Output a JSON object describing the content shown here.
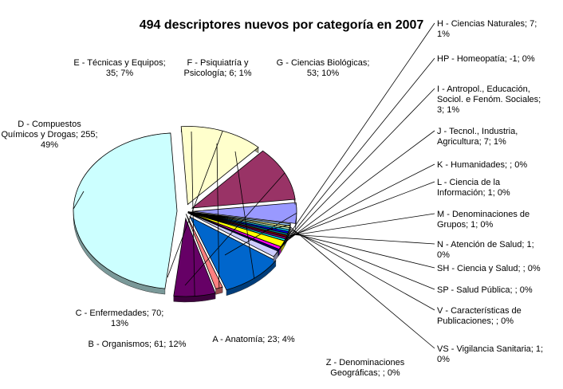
{
  "chart_data": {
    "type": "pie",
    "title": "494 descriptores nuevos por categoría en 2007",
    "series": [
      {
        "key": "D",
        "value": 255,
        "percent": 49,
        "color": "#ccffff",
        "label": [
          "D - Compuestos",
          "Químicos y Drogas; 255;",
          "49%"
        ]
      },
      {
        "key": "E",
        "value": 35,
        "percent": 7,
        "color": "#660066",
        "label": [
          "E - Técnicas y Equipos;",
          "35; 7%"
        ]
      },
      {
        "key": "F",
        "value": 6,
        "percent": 1,
        "color": "#ff8080",
        "label": [
          "F - Psiquiatría y",
          "Psicología; 6; 1%"
        ]
      },
      {
        "key": "G",
        "value": 53,
        "percent": 10,
        "color": "#0066cc",
        "label": [
          "G - Ciencias Biológicas;",
          "53; 10%"
        ]
      },
      {
        "key": "H",
        "value": 7,
        "percent": 1,
        "color": "#ccccff",
        "label": [
          "H - Ciencias Naturales; 7;",
          "1%"
        ]
      },
      {
        "key": "HP",
        "value": -1,
        "percent": 0,
        "color": "#000080",
        "label": [
          "HP - Homeopatía; -1; 0%"
        ]
      },
      {
        "key": "I",
        "value": 3,
        "percent": 1,
        "color": "#ff00ff",
        "label": [
          "I - Antropol., Educación,",
          "Sociol. e Fenóm. Sociales;",
          "3; 1%"
        ]
      },
      {
        "key": "J",
        "value": 7,
        "percent": 1,
        "color": "#ffff00",
        "label": [
          "J - Tecnol., Industria,",
          "Agricultura; 7; 1%"
        ]
      },
      {
        "key": "K",
        "value": 0,
        "percent": 0,
        "color": "#00ffff",
        "label": [
          "K - Humanidades; ; 0%"
        ]
      },
      {
        "key": "L",
        "value": 1,
        "percent": 0,
        "color": "#800080",
        "label": [
          "L - Ciencia de la",
          "Información; 1; 0%"
        ]
      },
      {
        "key": "M",
        "value": 1,
        "percent": 0,
        "color": "#800000",
        "label": [
          "M - Denominaciones de",
          "Grupos; 1; 0%"
        ]
      },
      {
        "key": "N",
        "value": 1,
        "percent": 0,
        "color": "#008080",
        "label": [
          "N - Atención de Salud; 1;",
          "0%"
        ]
      },
      {
        "key": "SH",
        "value": 0,
        "percent": 0,
        "color": "#0000ff",
        "label": [
          "SH - Ciencia y Salud; ; 0%"
        ]
      },
      {
        "key": "SP",
        "value": 0,
        "percent": 0,
        "color": "#00ccff",
        "label": [
          "SP - Salud Pública; ; 0%"
        ]
      },
      {
        "key": "V",
        "value": 0,
        "percent": 0,
        "color": "#ccffcc",
        "label": [
          "V - Características de",
          "Publicaciones; ; 0%"
        ]
      },
      {
        "key": "VS",
        "value": 1,
        "percent": 0,
        "color": "#ffff99",
        "label": [
          "VS - Vigilancia Sanitaria; 1;",
          "0%"
        ]
      },
      {
        "key": "Z",
        "value": 0,
        "percent": 0,
        "color": "#99ccff",
        "label": [
          "Z - Denominaciones",
          "Geográficas; ; 0%"
        ]
      },
      {
        "key": "A",
        "value": 23,
        "percent": 4,
        "color": "#9999ff",
        "label": [
          "A - Anatomía; 23; 4%"
        ]
      },
      {
        "key": "B",
        "value": 61,
        "percent": 12,
        "color": "#993366",
        "label": [
          "B - Organismos; 61; 12%"
        ]
      },
      {
        "key": "C",
        "value": 70,
        "percent": 13,
        "color": "#ffffcc",
        "label": [
          "C - Enfermedades; 70;",
          "13%"
        ]
      }
    ],
    "legend": "none",
    "exploded": true
  }
}
